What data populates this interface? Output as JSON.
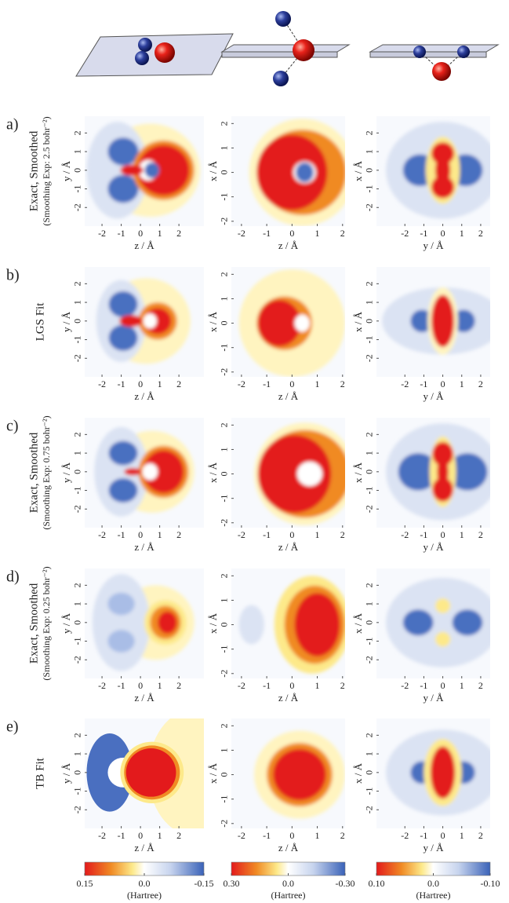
{
  "rows": [
    {
      "letter": "a)",
      "title": "Exact, Smoothed",
      "subtitle": "(Smoothing Exp: 2.5 bohr⁻²)"
    },
    {
      "letter": "b)",
      "title": "LGS Fit"
    },
    {
      "letter": "c)",
      "title": "Exact, Smoothed",
      "subtitle": "(Smoothing Exp: 0.75 bohr⁻²)"
    },
    {
      "letter": "d)",
      "title": "Exact, Smoothed",
      "subtitle": "(Smoothing Exp: 0.25 bohr⁻²)"
    },
    {
      "letter": "e)",
      "title": "TB Fit"
    }
  ],
  "columns": [
    {
      "xlabel": "z / Å",
      "ylabel": "y / Å",
      "xlim": [
        -2.9,
        3.3
      ],
      "ylim": [
        -3,
        2.9
      ],
      "xticks": [
        -2,
        -1,
        0,
        1,
        2
      ],
      "yticks": [
        -2,
        -1,
        0,
        1,
        2
      ],
      "colorbar": {
        "clim": [
          0.15,
          -0.15
        ],
        "ticks": [
          0.15,
          {
            "value": 0,
            "label": "0.0"
          },
          -0.15
        ],
        "label": "(Hartree)"
      }
    },
    {
      "xlabel": "z / Å",
      "ylabel": "x / Å",
      "xlim": [
        -2.4,
        2.1
      ],
      "ylim": [
        -2.2,
        2.3
      ],
      "xticks": [
        -2,
        -1,
        0,
        1,
        2
      ],
      "yticks": [
        -2,
        -1,
        0,
        1,
        2
      ],
      "colorbar": {
        "clim": [
          0.3,
          -0.3
        ],
        "ticks": [
          {
            "value": 0.3,
            "label": "0.30"
          },
          {
            "value": 0,
            "label": "0.0"
          },
          {
            "value": -0.3,
            "label": "-0.30"
          }
        ],
        "label": "(Hartree)"
      }
    },
    {
      "xlabel": "y / Å",
      "ylabel": "x / Å",
      "xlim": [
        -3.5,
        2.5
      ],
      "ylim": [
        -3,
        2.9
      ],
      "xticks": [
        -2,
        -1,
        0,
        1,
        2
      ],
      "yticks": [
        -2,
        -1,
        0,
        1,
        2
      ],
      "colorbar": {
        "clim": [
          0.1,
          -0.1
        ],
        "ticks": [
          {
            "value": 0.1,
            "label": "0.10"
          },
          {
            "value": 0,
            "label": "0.0"
          },
          {
            "value": -0.1,
            "label": "-0.10"
          }
        ],
        "label": "(Hartree)"
      }
    }
  ]
}
